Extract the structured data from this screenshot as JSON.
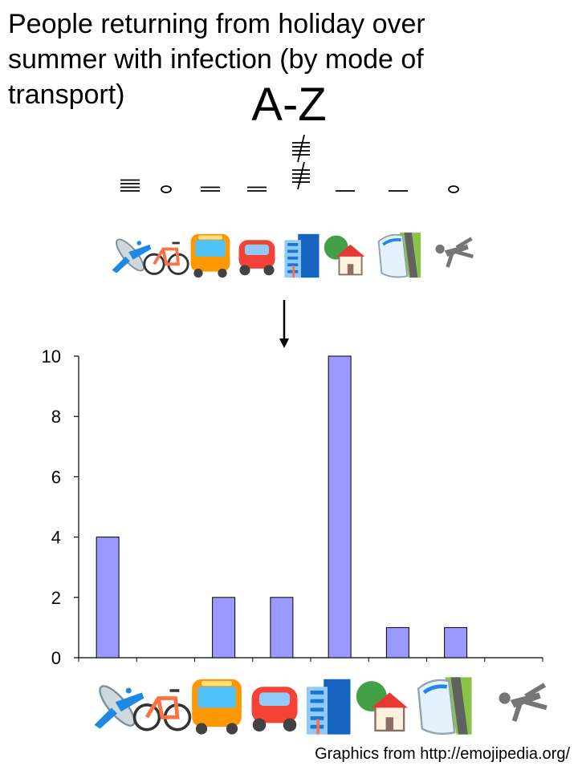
{
  "title_lines": [
    "People returning from holiday over",
    "summer with infection (by mode of",
    "transport)"
  ],
  "subtitle": "A-Z",
  "credit": "Graphics from http://emojipedia.org/",
  "icons": [
    "airplane-icon",
    "bicycle-icon",
    "bus-icon",
    "car-icon",
    "office-building-icon",
    "house-with-garden-icon",
    "train-icon",
    "walking-person-icon"
  ],
  "tallies": [
    {
      "type": "marks",
      "count": 4
    },
    {
      "type": "zero"
    },
    {
      "type": "marks",
      "count": 2
    },
    {
      "type": "marks",
      "count": 2
    },
    {
      "type": "gate",
      "count": 10
    },
    {
      "type": "marks",
      "count": 1
    },
    {
      "type": "marks",
      "count": 1
    },
    {
      "type": "zero"
    }
  ],
  "colors": {
    "bar_fill": "#9999ff",
    "bar_stroke": "#000000",
    "axis": "#000000"
  },
  "chart_data": {
    "type": "bar",
    "categories": [
      "airplane",
      "bicycle",
      "bus",
      "car",
      "office building",
      "house with garden",
      "train",
      "walking person"
    ],
    "values": [
      4,
      0,
      2,
      2,
      10,
      1,
      1,
      0
    ],
    "ylim": [
      0,
      10
    ],
    "yticks": [
      0,
      2,
      4,
      6,
      8,
      10
    ],
    "xlabel": "",
    "ylabel": "",
    "grid": false,
    "legend": "none"
  }
}
